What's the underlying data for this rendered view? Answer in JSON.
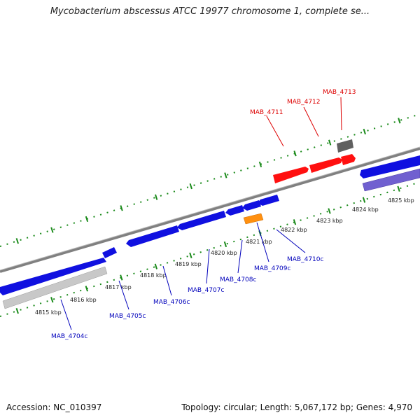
{
  "title": "Mycobacterium abscessus ATCC 19977 chromosome 1, complete se...",
  "accession": "Accession: NC_010397",
  "summary": "Topology: circular; Length: 5,067,172 bp; Genes: 4,970",
  "colors": {
    "forward_gene": "#1010e0",
    "reverse_gene": "#1010e0",
    "highlight_gene": "#ff1010",
    "misc_gene": "#606060",
    "orange_gene": "#ff9010",
    "pseudo_gene": "#7060d0",
    "backbone": "#888888",
    "tick": "#1a8a1a",
    "label_blue": "#0000bb",
    "label_red": "#dd0000"
  },
  "ruler_ticks": [
    "4815 kbp",
    "4816 kbp",
    "4817 kbp",
    "4818 kbp",
    "4819 kbp",
    "4820 kbp",
    "4821 kbp",
    "4822 kbp",
    "4823 kbp",
    "4824 kbp",
    "4825 kbp"
  ],
  "gene_labels": {
    "mab_4704c": "MAB_4704c",
    "mab_4705c": "MAB_4705c",
    "mab_4706c": "MAB_4706c",
    "mab_4707c": "MAB_4707c",
    "mab_4708c": "MAB_4708c",
    "mab_4709c": "MAB_4709c",
    "mab_4710c": "MAB_4710c",
    "mab_4711": "MAB_4711",
    "mab_4712": "MAB_4712",
    "mab_4713": "MAB_4713"
  }
}
